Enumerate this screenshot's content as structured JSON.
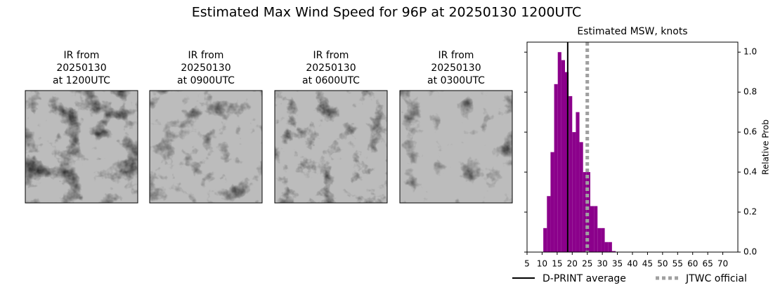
{
  "title": "Estimated Max Wind Speed for 96P at 20250130 1200UTC",
  "panels": [
    {
      "lines": [
        "IR from",
        "20250130",
        "at 1200UTC"
      ]
    },
    {
      "lines": [
        "IR from",
        "20250130",
        "at 0900UTC"
      ]
    },
    {
      "lines": [
        "IR from",
        "20250130",
        "at 0600UTC"
      ]
    },
    {
      "lines": [
        "IR from",
        "20250130",
        "at 0300UTC"
      ]
    }
  ],
  "chart_data": {
    "type": "histogram",
    "title": "Estimated MSW, knots",
    "ylabel": "Relative Prob",
    "color": "#8b008b",
    "bins": [
      10.4,
      11.6,
      12.8,
      14.0,
      15.2,
      16.4,
      17.6,
      18.8,
      20.0,
      21.2,
      22.4,
      23.6,
      24.8,
      26.0,
      27.2,
      28.4,
      29.6,
      30.8,
      32.0,
      33.2,
      34.4
    ],
    "values": [
      0.12,
      0.28,
      0.5,
      0.84,
      1.0,
      0.96,
      0.9,
      0.78,
      0.6,
      0.7,
      0.55,
      0.4,
      0.4,
      0.23,
      0.23,
      0.12,
      0.12,
      0.05,
      0.05,
      0.005
    ],
    "xlim": [
      5,
      75
    ],
    "ylim": [
      0,
      1.05
    ],
    "xticks": [
      5,
      10,
      15,
      20,
      25,
      30,
      35,
      40,
      45,
      50,
      55,
      60,
      65,
      70
    ],
    "yticks": [
      {
        "value": 0,
        "label": "0.0"
      },
      0.2,
      0.4,
      0.6,
      0.8,
      {
        "value": 1,
        "label": "1.0"
      }
    ],
    "lines": [
      {
        "name": "D-PRINT average",
        "value": 18.5,
        "color": "#000000",
        "style": "solid"
      },
      {
        "name": "JTWC official",
        "value": 25,
        "color": "#a0a0a0",
        "style": "dotted"
      }
    ]
  }
}
